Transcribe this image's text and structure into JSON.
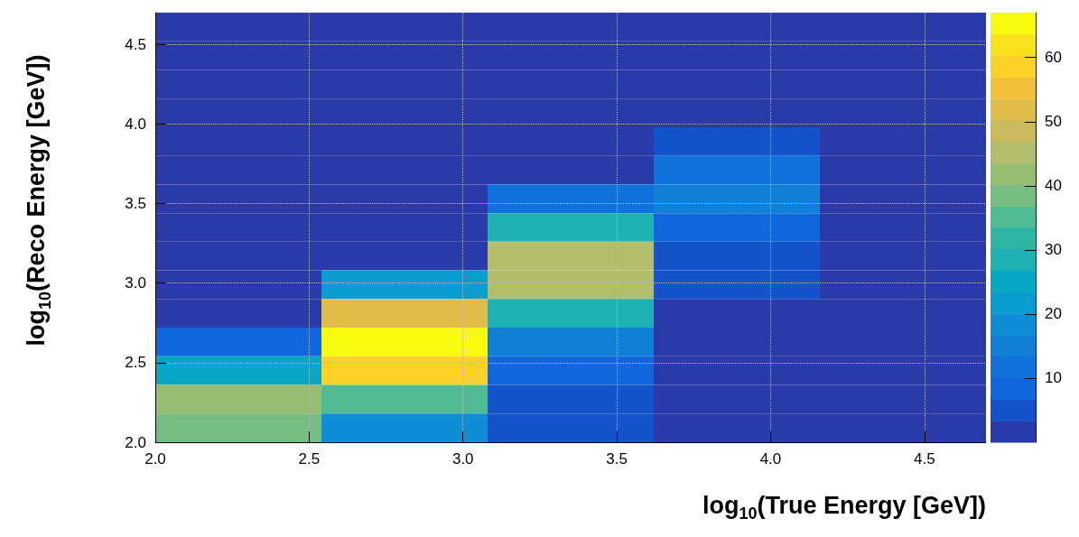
{
  "chart_data": {
    "type": "heatmap",
    "xlabel": "log$_{10}$(True Energy [GeV])",
    "ylabel": "log$_{10}$(Reco Energy [GeV])",
    "x": [
      2.27,
      2.81,
      3.35,
      3.89,
      4.43
    ],
    "y": [
      4.61,
      4.43,
      4.25,
      4.07,
      3.89,
      3.71,
      3.53,
      3.35,
      3.17,
      2.99,
      2.81,
      2.63,
      2.45,
      2.27,
      2.09
    ],
    "cells": [
      [
        0,
        0,
        0,
        0,
        0
      ],
      [
        0,
        0,
        0,
        0,
        0
      ],
      [
        0,
        0,
        0,
        0,
        0
      ],
      [
        0,
        0,
        0,
        0,
        0
      ],
      [
        0,
        0,
        0,
        5,
        0
      ],
      [
        0,
        0,
        0,
        12,
        0
      ],
      [
        0,
        0,
        12,
        15,
        0
      ],
      [
        0,
        0,
        28,
        8,
        0
      ],
      [
        0,
        0,
        45,
        5,
        0
      ],
      [
        0,
        22,
        45,
        5,
        0
      ],
      [
        0,
        52,
        28,
        0,
        0
      ],
      [
        8,
        65,
        15,
        0,
        0
      ],
      [
        25,
        59,
        8,
        0,
        0
      ],
      [
        42,
        35,
        5,
        0,
        0
      ],
      [
        38,
        18,
        5,
        0,
        0
      ]
    ],
    "xlim": [
      2.0,
      4.7
    ],
    "ylim": [
      2.0,
      4.7
    ],
    "xticks": [
      {
        "value": 2,
        "label": "2.0"
      },
      {
        "value": 2.5,
        "label": "2.5"
      },
      {
        "value": 3,
        "label": "3.0"
      },
      {
        "value": 3.5,
        "label": "3.5"
      },
      {
        "value": 4,
        "label": "4.0"
      },
      {
        "value": 4.5,
        "label": "4.5"
      }
    ],
    "yticks": [
      {
        "value": 2,
        "label": "2.0"
      },
      {
        "value": 2.5,
        "label": "2.5"
      },
      {
        "value": 3,
        "label": "3.0"
      },
      {
        "value": 3.5,
        "label": "3.5"
      },
      {
        "value": 4,
        "label": "4.0"
      },
      {
        "value": 4.5,
        "label": "4.5"
      }
    ],
    "clim": [
      0,
      67
    ],
    "cticks": [
      10,
      20,
      30,
      40,
      50,
      60
    ],
    "grid": true
  }
}
